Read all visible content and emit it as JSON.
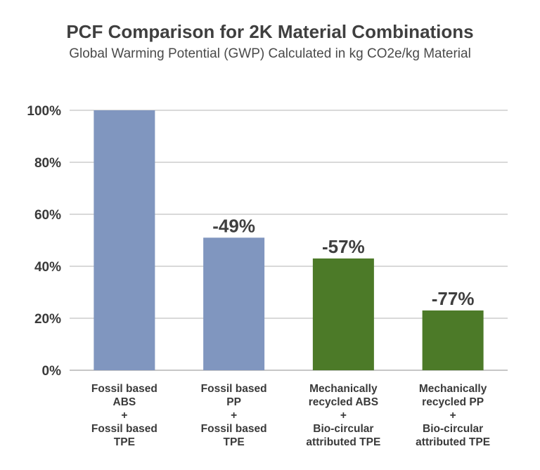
{
  "chart_data": {
    "type": "bar",
    "title": "PCF Comparison for 2K Material Combinations",
    "subtitle": "Global Warming Potential (GWP) Calculated in kg CO2e/kg Material",
    "xlabel": "",
    "ylabel": "",
    "ylim": [
      0,
      100
    ],
    "yticks": [
      0,
      20,
      40,
      60,
      80,
      100
    ],
    "ytick_labels": [
      "0%",
      "20%",
      "40%",
      "60%",
      "80%",
      "100%"
    ],
    "grid": true,
    "categories": [
      {
        "lines": [
          "Fossil based",
          "ABS",
          "+",
          "Fossil based",
          "TPE"
        ]
      },
      {
        "lines": [
          "Fossil based",
          "PP",
          "+",
          "Fossil based",
          "TPE"
        ]
      },
      {
        "lines": [
          "Mechanically",
          "recycled ABS",
          "+",
          "Bio-circular",
          "attributed TPE"
        ]
      },
      {
        "lines": [
          "Mechanically",
          "recycled PP",
          "+",
          "Bio-circular",
          "attributed TPE"
        ]
      }
    ],
    "values": [
      100,
      51,
      43,
      23
    ],
    "data_labels": [
      "",
      "-49%",
      "-57%",
      "-77%"
    ],
    "colors": [
      "#8096bf",
      "#8096bf",
      "#4c7a28",
      "#4c7a28"
    ],
    "gridline_color": "#b3b3b3"
  }
}
